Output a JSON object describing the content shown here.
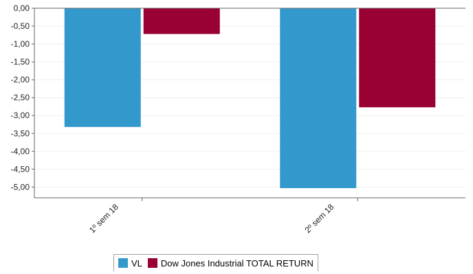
{
  "chart_data": {
    "type": "bar",
    "categories": [
      "1º sem  18",
      "2º sem  18"
    ],
    "series": [
      {
        "name": "VL",
        "values": [
          -3.32,
          -5.03
        ],
        "color": "#3399cc"
      },
      {
        "name": "Dow Jones Industrial TOTAL RETURN",
        "values": [
          -0.72,
          -2.77
        ],
        "color": "#990033"
      }
    ],
    "ylim": [
      -5.3,
      0
    ],
    "yticks": [
      "0,00",
      "-0,50",
      "-1,00",
      "-1,50",
      "-2,00",
      "-2,50",
      "-3,00",
      "-3,50",
      "-4,00",
      "-4,50",
      "-5,00"
    ],
    "grid": true,
    "legend_position": "bottom"
  }
}
